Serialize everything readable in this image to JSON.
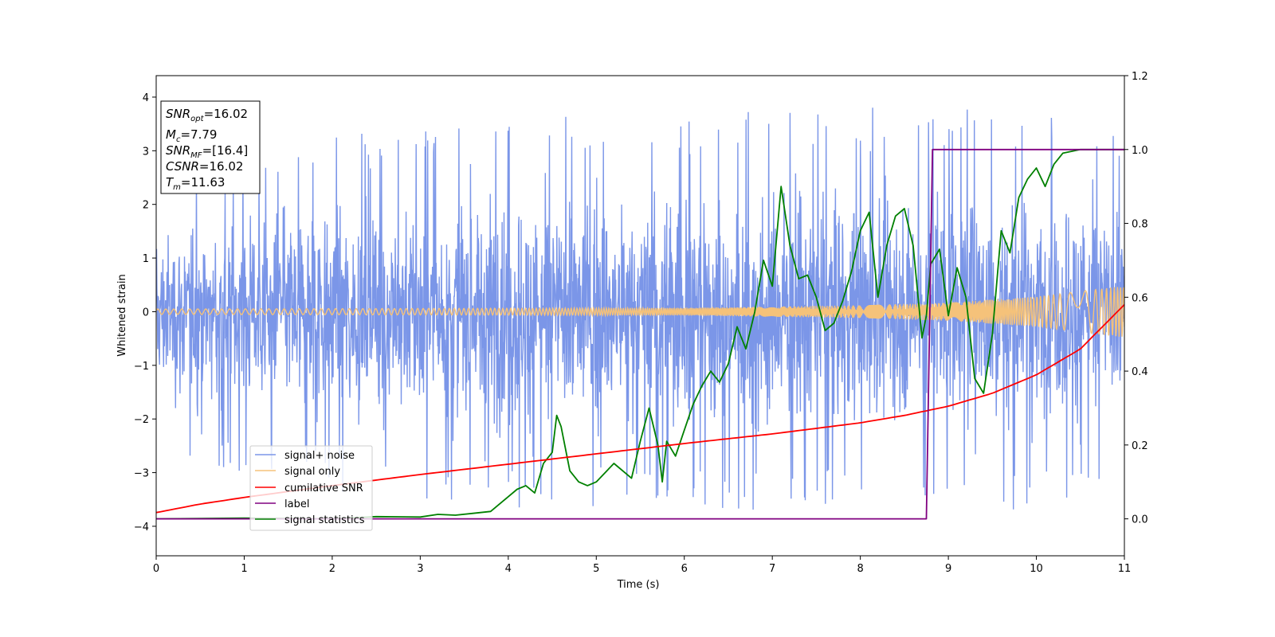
{
  "chart_data": {
    "type": "line",
    "xlabel": "Time (s)",
    "ylabel": "Whitened strain",
    "xlim": [
      0,
      11
    ],
    "ylim": [
      -4.55,
      4.4
    ],
    "y2lim": [
      -0.1,
      1.2
    ],
    "xticks": [
      0,
      1,
      2,
      3,
      4,
      5,
      6,
      7,
      8,
      9,
      10,
      11
    ],
    "yticks": [
      -4,
      -3,
      -2,
      -1,
      0,
      1,
      2,
      3,
      4
    ],
    "y2ticks": [
      "0.0",
      "0.2",
      "0.4",
      "0.6",
      "0.8",
      "1.0",
      "1.2"
    ],
    "grid": false,
    "legend_position": "lower-left",
    "annotation": {
      "snr_opt": "=16.02",
      "mc": "=7.79",
      "snr_mf": "=[16.4]",
      "csnr": "=16.02",
      "tm": "=11.63"
    },
    "series": [
      {
        "name": "signal+ noise",
        "color": "#7b96e8",
        "axis": "left",
        "kind": "noise",
        "upper_envelope": [
          [
            0,
            2.2
          ],
          [
            1,
            2.6
          ],
          [
            2,
            2.9
          ],
          [
            3,
            3.0
          ],
          [
            4,
            3.1
          ],
          [
            5,
            3.2
          ],
          [
            6,
            3.2
          ],
          [
            7,
            3.3
          ],
          [
            8,
            3.3
          ],
          [
            9,
            3.4
          ],
          [
            10,
            3.3
          ],
          [
            11,
            2.8
          ]
        ],
        "lower_envelope": [
          [
            0,
            -2.3
          ],
          [
            1,
            -2.6
          ],
          [
            2,
            -2.9
          ],
          [
            3,
            -3.1
          ],
          [
            4,
            -3.2
          ],
          [
            5,
            -3.2
          ],
          [
            6,
            -3.3
          ],
          [
            7,
            -3.3
          ],
          [
            8,
            -3.2
          ],
          [
            9,
            -3.3
          ],
          [
            10,
            -3.2
          ],
          [
            11,
            -2.7
          ]
        ],
        "max": 4.0,
        "min": -4.15
      },
      {
        "name": "signal only",
        "color": "#f5c27a",
        "axis": "left",
        "kind": "chirp",
        "amplitude": [
          [
            0,
            0.05
          ],
          [
            6,
            0.07
          ],
          [
            8,
            0.12
          ],
          [
            9,
            0.17
          ],
          [
            10,
            0.28
          ],
          [
            11,
            0.48
          ]
        ]
      },
      {
        "name": "cumilative SNR",
        "color": "#ff0000",
        "axis": "right",
        "x": [
          0,
          0.5,
          1,
          2,
          3,
          4,
          5,
          6,
          7,
          8,
          8.5,
          9,
          9.5,
          10,
          10.5,
          11
        ],
        "values": [
          0.017,
          0.04,
          0.058,
          0.09,
          0.12,
          0.148,
          0.176,
          0.204,
          0.23,
          0.26,
          0.28,
          0.305,
          0.34,
          0.39,
          0.46,
          0.58
        ]
      },
      {
        "name": "label",
        "color": "#800080",
        "axis": "right",
        "x": [
          0,
          8.75,
          8.82,
          11
        ],
        "values": [
          0,
          0,
          1,
          1
        ]
      },
      {
        "name": "signal statistics",
        "color": "#008000",
        "axis": "right",
        "x": [
          0,
          1,
          2,
          2.5,
          3,
          3.2,
          3.4,
          3.6,
          3.8,
          4.0,
          4.1,
          4.2,
          4.3,
          4.4,
          4.5,
          4.55,
          4.6,
          4.7,
          4.8,
          4.9,
          5.0,
          5.2,
          5.4,
          5.5,
          5.6,
          5.7,
          5.75,
          5.8,
          5.9,
          6.0,
          6.1,
          6.2,
          6.3,
          6.4,
          6.5,
          6.6,
          6.7,
          6.8,
          6.9,
          7.0,
          7.1,
          7.2,
          7.3,
          7.4,
          7.5,
          7.6,
          7.7,
          7.8,
          7.9,
          8.0,
          8.1,
          8.2,
          8.3,
          8.4,
          8.5,
          8.6,
          8.7,
          8.75,
          8.8,
          8.9,
          9.0,
          9.1,
          9.2,
          9.3,
          9.4,
          9.5,
          9.6,
          9.7,
          9.8,
          9.9,
          10.0,
          10.1,
          10.2,
          10.3,
          10.5,
          11
        ],
        "values": [
          0.0,
          0.002,
          0.0,
          0.006,
          0.005,
          0.012,
          0.01,
          0.015,
          0.02,
          0.06,
          0.08,
          0.09,
          0.07,
          0.15,
          0.18,
          0.28,
          0.25,
          0.13,
          0.1,
          0.09,
          0.1,
          0.15,
          0.11,
          0.21,
          0.3,
          0.2,
          0.1,
          0.21,
          0.17,
          0.24,
          0.31,
          0.36,
          0.4,
          0.37,
          0.42,
          0.52,
          0.46,
          0.56,
          0.7,
          0.63,
          0.9,
          0.74,
          0.65,
          0.66,
          0.6,
          0.51,
          0.53,
          0.59,
          0.67,
          0.78,
          0.83,
          0.6,
          0.74,
          0.82,
          0.84,
          0.74,
          0.49,
          0.55,
          0.69,
          0.73,
          0.55,
          0.68,
          0.6,
          0.38,
          0.34,
          0.5,
          0.78,
          0.72,
          0.87,
          0.92,
          0.95,
          0.9,
          0.96,
          0.99,
          1.0,
          1.0
        ]
      }
    ]
  }
}
